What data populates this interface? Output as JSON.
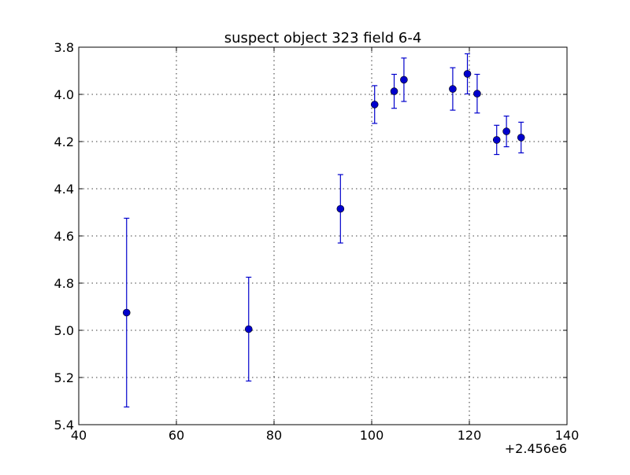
{
  "chart_data": {
    "type": "scatter",
    "title": "suspect object 323 field 6-4",
    "xlabel": "",
    "ylabel": "",
    "x_offset_label": "+2.456e6",
    "xlim": [
      40,
      140
    ],
    "ylim": [
      5.4,
      3.8
    ],
    "y_inverted": true,
    "grid": true,
    "x_ticks": [
      40,
      60,
      80,
      100,
      120,
      140
    ],
    "x_tick_labels": [
      "40",
      "60",
      "80",
      "100",
      "120",
      "140"
    ],
    "y_ticks": [
      3.8,
      4.0,
      4.2,
      4.4,
      4.6,
      4.8,
      5.0,
      5.2,
      5.4
    ],
    "y_tick_labels": [
      "3.8",
      "4.0",
      "4.2",
      "4.4",
      "4.6",
      "4.8",
      "5.0",
      "5.2",
      "5.4"
    ],
    "marker_color": "#0000cc",
    "series": [
      {
        "points": [
          {
            "x": 49.8,
            "y": 4.925,
            "err": 0.4
          },
          {
            "x": 74.8,
            "y": 4.995,
            "err": 0.22
          },
          {
            "x": 93.6,
            "y": 4.485,
            "err": 0.145
          },
          {
            "x": 100.6,
            "y": 4.043,
            "err": 0.08
          },
          {
            "x": 104.6,
            "y": 3.987,
            "err": 0.072
          },
          {
            "x": 106.6,
            "y": 3.938,
            "err": 0.092
          },
          {
            "x": 116.6,
            "y": 3.977,
            "err": 0.09
          },
          {
            "x": 119.6,
            "y": 3.913,
            "err": 0.085
          },
          {
            "x": 121.6,
            "y": 3.997,
            "err": 0.082
          },
          {
            "x": 125.6,
            "y": 4.193,
            "err": 0.062
          },
          {
            "x": 127.6,
            "y": 4.157,
            "err": 0.065
          },
          {
            "x": 130.6,
            "y": 4.183,
            "err": 0.065
          }
        ]
      }
    ]
  }
}
